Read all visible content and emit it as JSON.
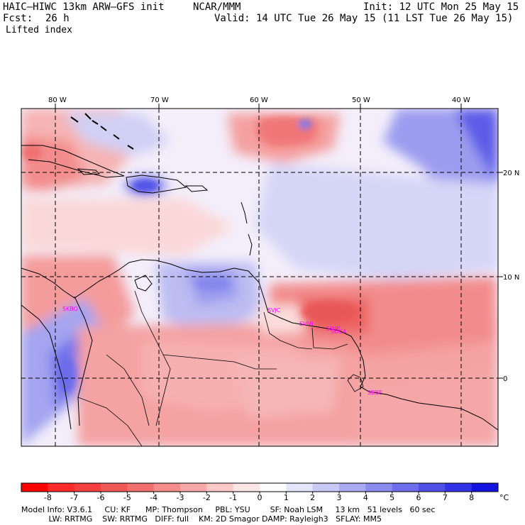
{
  "header": {
    "model": "HAIC–HIWC 13km ARW–GFS init",
    "org": "NCAR/MMM",
    "init": "Init: 12 UTC Mon 25 May 15",
    "fcst_label": "Fcst:",
    "fcst_value": "26 h",
    "valid": "Valid: 14 UTC Tue 26 May 15 (11 LST Tue 26 May 15)",
    "field": "Lifted index"
  },
  "map": {
    "lon_labels": [
      "80 W",
      "70 W",
      "60 W",
      "50 W",
      "40 W"
    ],
    "lat_labels": [
      "20 N",
      "10 N",
      "0"
    ],
    "stations": [
      "SKBO",
      "SVJC",
      "SVMI",
      "SMJP",
      "SOCA",
      "SBBE"
    ]
  },
  "colorbar": {
    "unit": "°C",
    "ticks": [
      "-8",
      "-7",
      "-6",
      "-5",
      "-4",
      "-3",
      "-2",
      "-1",
      "0",
      "1",
      "2",
      "3",
      "4",
      "5",
      "6",
      "7",
      "8"
    ],
    "colors": [
      "#ff0000",
      "#ff2a2a",
      "#f54040",
      "#f05858",
      "#f07070",
      "#f58c8c",
      "#f8a8a8",
      "#fbc8c8",
      "#fde6e6",
      "#ffffff",
      "#e4e4fb",
      "#c8c8f5",
      "#aaaaf2",
      "#8c8cef",
      "#6e6eec",
      "#5050e9",
      "#3232e6",
      "#1414e0"
    ]
  },
  "footer": {
    "line1": "Model Info: V3.6.1     CU: KF      MP: Thompson     PBL: YSU        SF: Noah LSM     13 km   51 levels   60 sec",
    "line2": "           LW: RRTMG    SW: RRTMG   DIFF: full    KM: 2D Smagor DAMP: Rayleigh3   SFLAY: MM5"
  }
}
